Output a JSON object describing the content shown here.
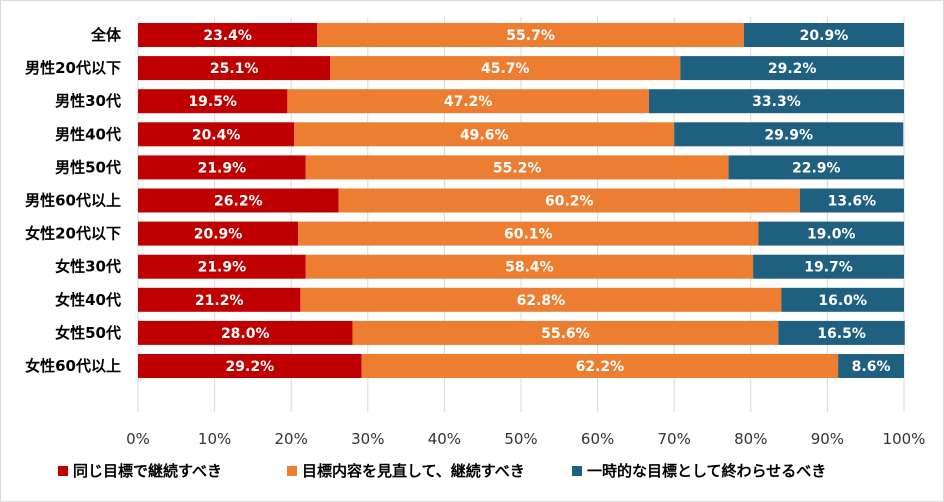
{
  "chart_data": {
    "type": "bar",
    "orientation": "horizontal",
    "stacked": true,
    "categories": [
      "全体",
      "男性20代以下",
      "男性30代",
      "男性40代",
      "男性50代",
      "男性60代以上",
      "女性20代以下",
      "女性30代",
      "女性40代",
      "女性50代",
      "女性60代以上"
    ],
    "series": [
      {
        "name": "同じ目標で継続すべき",
        "color": "#c00000",
        "values": [
          23.4,
          25.1,
          19.5,
          20.4,
          21.9,
          26.2,
          20.9,
          21.9,
          21.2,
          28.0,
          29.2
        ]
      },
      {
        "name": "目標内容を見直して、継続すべき",
        "color": "#ed7d31",
        "values": [
          55.7,
          45.7,
          47.2,
          49.6,
          55.2,
          60.2,
          60.1,
          58.4,
          62.8,
          55.6,
          62.2
        ]
      },
      {
        "name": "一時的な目標として終わらせるべき",
        "color": "#1f5f7f",
        "values": [
          20.9,
          29.2,
          33.3,
          29.9,
          22.9,
          13.6,
          19.0,
          19.7,
          16.0,
          16.5,
          8.6
        ]
      }
    ],
    "xlim": [
      0,
      100
    ],
    "xticks": [
      "0%",
      "10%",
      "20%",
      "30%",
      "40%",
      "50%",
      "60%",
      "70%",
      "80%",
      "90%",
      "100%"
    ],
    "grid": true,
    "legend_position": "bottom"
  }
}
